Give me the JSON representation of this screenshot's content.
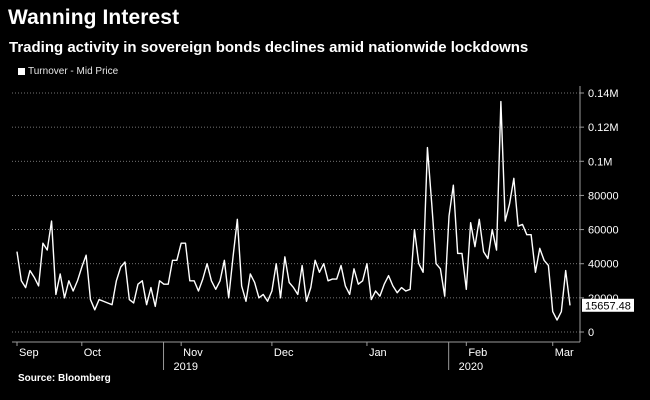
{
  "title": "Wanning Interest",
  "subtitle": "Trading activity in sovereign bonds declines amid nationwide lockdowns",
  "source": "Source: Bloomberg",
  "colors": {
    "background": "#000000",
    "line": "#ffffff",
    "grid": "#9a9a9a",
    "text": "#ffffff"
  },
  "chart_data": {
    "type": "line",
    "title": "Wanning Interest",
    "subtitle": "Trading activity in sovereign bonds declines amid nationwide lockdowns",
    "xlabel": "",
    "ylabel": "",
    "ylim": [
      0,
      140000
    ],
    "yticks": [
      {
        "value": 0,
        "label": "0"
      },
      {
        "value": 20000,
        "label": "20000"
      },
      {
        "value": 40000,
        "label": "40000"
      },
      {
        "value": 60000,
        "label": "60000"
      },
      {
        "value": 80000,
        "label": "80000"
      },
      {
        "value": 100000,
        "label": "0.1M"
      },
      {
        "value": 120000,
        "label": "0.12M"
      },
      {
        "value": 140000,
        "label": "0.14M"
      }
    ],
    "xticks": [
      {
        "index": 0,
        "label": "Sep"
      },
      {
        "index": 15,
        "label": "Oct"
      },
      {
        "index": 38,
        "label": "Nov"
      },
      {
        "index": 59,
        "label": "Dec"
      },
      {
        "index": 81,
        "label": "Jan"
      },
      {
        "index": 104,
        "label": "Feb"
      },
      {
        "index": 124,
        "label": "Mar"
      }
    ],
    "year_labels": [
      {
        "index": 36,
        "label": "2019"
      },
      {
        "index": 102,
        "label": "2020"
      }
    ],
    "grid": true,
    "grid_style": "dotted",
    "legend_position": "top-left",
    "last_value_label": "15657.48",
    "series": [
      {
        "name": "Turnover - Mid Price",
        "values": [
          47000,
          30000,
          26000,
          36000,
          32000,
          27000,
          52000,
          48000,
          65000,
          22000,
          34000,
          20000,
          30000,
          24000,
          30000,
          38000,
          45000,
          19000,
          13000,
          19000,
          18000,
          17000,
          16000,
          30000,
          38000,
          41000,
          19000,
          17000,
          28000,
          30000,
          16000,
          26000,
          15000,
          30000,
          28000,
          28000,
          42000,
          42000,
          52000,
          52000,
          30000,
          30000,
          24000,
          31000,
          40000,
          30000,
          25000,
          30000,
          42000,
          20000,
          44000,
          66000,
          27000,
          18000,
          34000,
          29000,
          20000,
          22000,
          18000,
          24000,
          40000,
          20000,
          44000,
          29000,
          26000,
          22000,
          39000,
          18000,
          26000,
          42000,
          35000,
          40000,
          30000,
          31000,
          31000,
          39000,
          27000,
          22000,
          37000,
          28000,
          30000,
          40000,
          19000,
          24000,
          21000,
          28000,
          33000,
          27000,
          23000,
          26000,
          24000,
          25000,
          60000,
          40000,
          35000,
          108000,
          75000,
          40000,
          37000,
          21000,
          68000,
          86000,
          46000,
          46000,
          25000,
          64000,
          50000,
          66000,
          47000,
          43000,
          60000,
          48000,
          135000,
          65000,
          75000,
          90000,
          62000,
          63000,
          57000,
          57000,
          35000,
          49000,
          42000,
          39000,
          12000,
          7000,
          12000,
          36000,
          15657
        ]
      }
    ]
  }
}
